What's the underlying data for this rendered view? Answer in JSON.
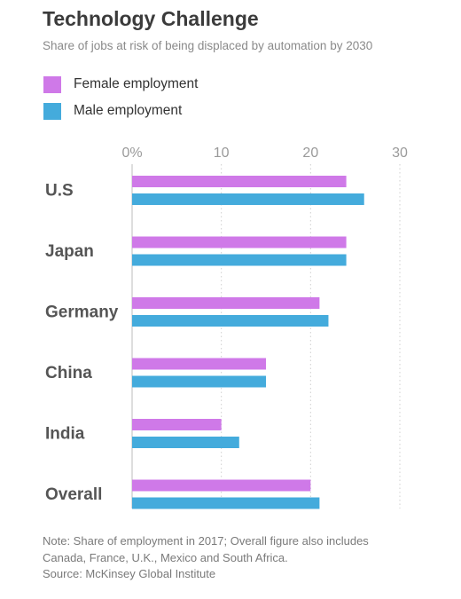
{
  "header": {
    "title": "Technology Challenge",
    "subtitle": "Share of jobs at risk of being displaced by automation by 2030"
  },
  "legend": [
    {
      "label": "Female employment",
      "color": "#cf79e8"
    },
    {
      "label": "Male employment",
      "color": "#44abdc"
    }
  ],
  "footer": {
    "note_line1": "Note: Share of employment in 2017; Overall figure also includes",
    "note_line2": "Canada, France, U.K., Mexico and South Africa.",
    "source": "Source: McKinsey Global Institute"
  },
  "chart_data": {
    "type": "bar",
    "orientation": "horizontal",
    "title": "Technology Challenge",
    "subtitle": "Share of jobs at risk of being displaced by automation by 2030",
    "categories": [
      "U.S",
      "Japan",
      "Germany",
      "China",
      "India",
      "Overall"
    ],
    "series": [
      {
        "name": "Female employment",
        "color": "#cf79e8",
        "values": [
          24,
          24,
          21,
          15,
          10,
          20
        ]
      },
      {
        "name": "Male employment",
        "color": "#44abdc",
        "values": [
          26,
          24,
          22,
          15,
          12,
          21
        ]
      }
    ],
    "xlim": [
      0,
      30
    ],
    "xticks": [
      0,
      10,
      20,
      30
    ],
    "xtick_labels": [
      "0%",
      "10",
      "20",
      "30"
    ],
    "grid": true,
    "legend_position": "top-left"
  }
}
